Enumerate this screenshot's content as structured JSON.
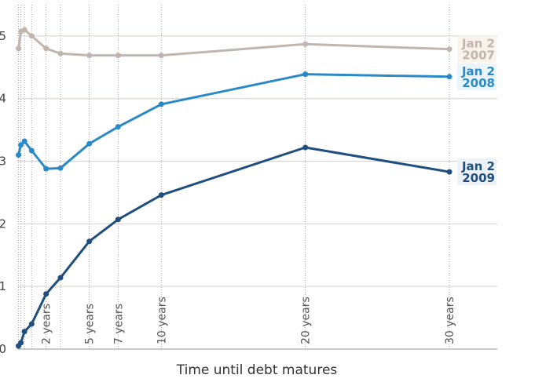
{
  "chart_data": {
    "type": "line",
    "xlabel": "Time until debt matures",
    "ylabel": "",
    "ylim": [
      0,
      5.5
    ],
    "y_ticks": [
      "0",
      "1",
      "2",
      "3",
      "4",
      "5"
    ],
    "x_unit": "years",
    "x_maturities": [
      0.0833,
      0.25,
      0.5,
      1,
      2,
      3,
      5,
      7,
      10,
      20,
      30
    ],
    "x_category_labels": [
      {
        "label": "2 years",
        "x": 2
      },
      {
        "label": "5 years",
        "x": 5
      },
      {
        "label": "7 years",
        "x": 7
      },
      {
        "label": "10 years",
        "x": 10
      },
      {
        "label": "20 years",
        "x": 20
      },
      {
        "label": "30 years",
        "x": 30
      }
    ],
    "grid": true,
    "series": [
      {
        "label_line1": "Jan 2",
        "label_line2": "2007",
        "color": "#c1b6ad",
        "label_bg": "#faf3ec",
        "values": [
          4.8,
          5.07,
          5.1,
          5.0,
          4.8,
          4.72,
          4.69,
          4.69,
          4.69,
          4.87,
          4.79
        ]
      },
      {
        "label_line1": "Jan 2",
        "label_line2": "2008",
        "color": "#2a8ac7",
        "label_bg": "#eaf4fb",
        "values": [
          3.1,
          3.26,
          3.32,
          3.17,
          2.88,
          2.89,
          3.28,
          3.55,
          3.91,
          4.39,
          4.35
        ]
      },
      {
        "label_line1": "Jan 2",
        "label_line2": "2009",
        "color": "#1f4e7f",
        "label_bg": "#edf2f7",
        "values": [
          0.05,
          0.1,
          0.28,
          0.4,
          0.88,
          1.14,
          1.72,
          2.07,
          2.46,
          3.22,
          2.83
        ]
      }
    ]
  }
}
